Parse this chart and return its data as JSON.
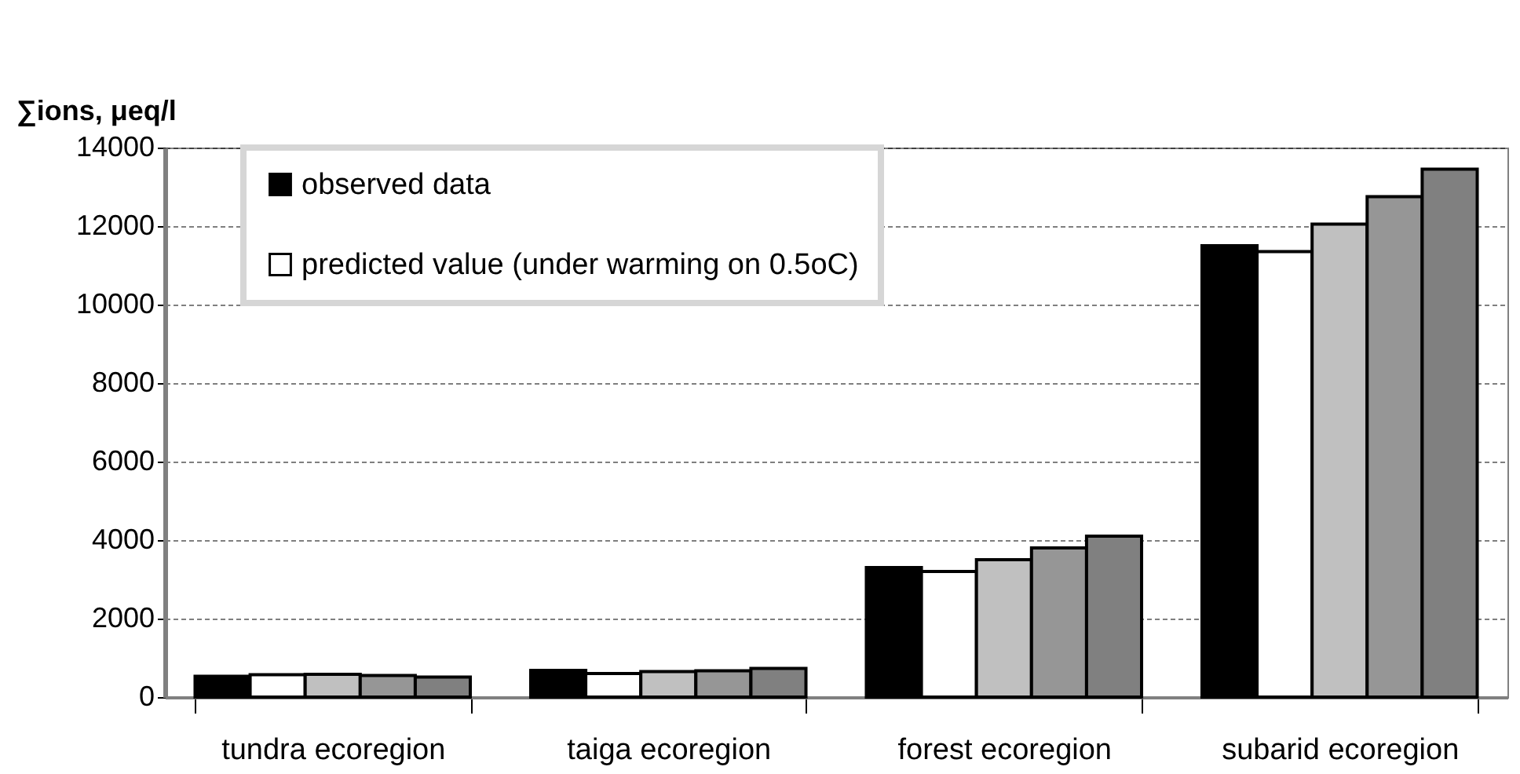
{
  "chart_data": {
    "type": "bar",
    "ylabel": "∑ions, μeq/l",
    "categories": [
      "tundra ecoregion",
      "taiga ecoregion",
      "forest ecoregion",
      "subarid ecoregion"
    ],
    "series": [
      {
        "name": "observed data",
        "color": "#000000",
        "values": [
          530,
          680,
          3300,
          11500
        ]
      },
      {
        "name": "predicted value (under warming on 0.5oC)",
        "color": "#ffffff",
        "values": [
          570,
          600,
          3200,
          11350
        ]
      },
      {
        "color": "#c0c0c0",
        "values": [
          580,
          650,
          3500,
          12050
        ]
      },
      {
        "color": "#969696",
        "values": [
          550,
          670,
          3800,
          12750
        ]
      },
      {
        "color": "#808080",
        "values": [
          510,
          730,
          4100,
          13450
        ]
      }
    ],
    "ylim": [
      0,
      14000
    ],
    "yticks": [
      0,
      2000,
      4000,
      6000,
      8000,
      10000,
      12000,
      14000
    ],
    "grid": "y",
    "legend": "top left"
  }
}
